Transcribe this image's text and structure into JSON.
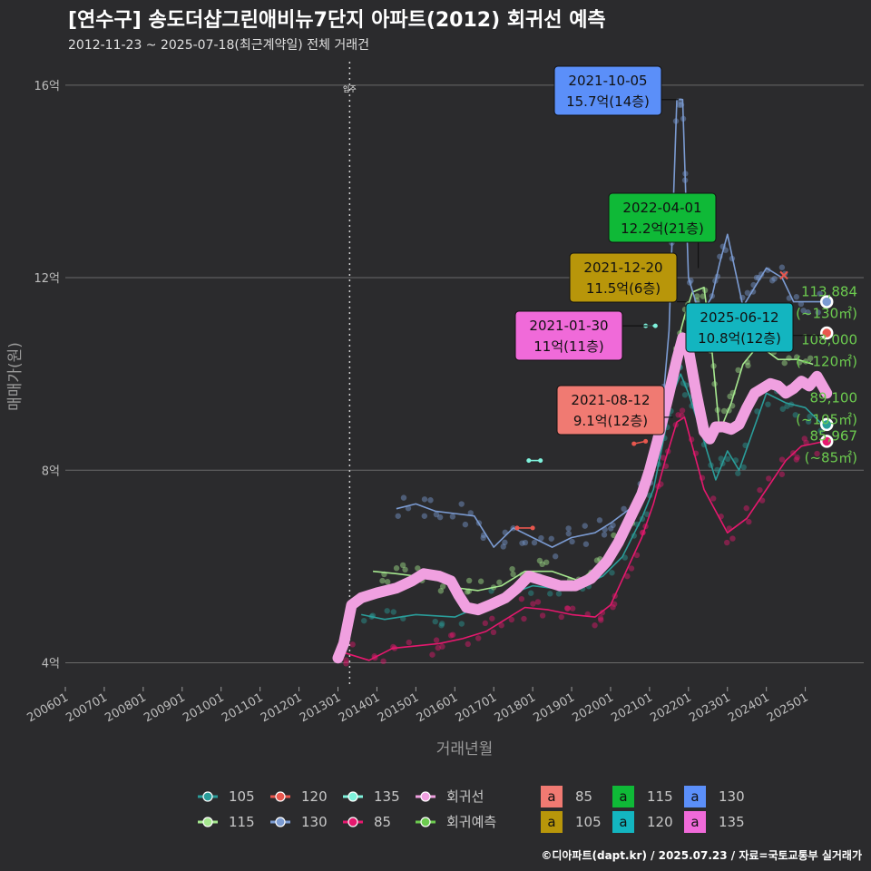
{
  "title": "[연수구] 송도더샵그린애비뉴7단지 아파트(2012) 회귀선 예측",
  "subtitle": "2012-11-23 ~ 2025-07-18(최근계약일) 전체 거래건",
  "caption": "©디아파트(dapt.kr) / 2025.07.23 / 자료=국토교통부 실거래가",
  "chart_data": {
    "type": "line",
    "xlabel": "거래년월",
    "ylabel": "매매가(원)",
    "xlim": [
      2006.0,
      2026.5
    ],
    "ylim": [
      3.5,
      16.6
    ],
    "x_ticks": [
      "200601",
      "200701",
      "200801",
      "200901",
      "201001",
      "201101",
      "201201",
      "201301",
      "201401",
      "201501",
      "201601",
      "201701",
      "201801",
      "201901",
      "202001",
      "202101",
      "202201",
      "202301",
      "202401",
      "202501"
    ],
    "y_ticks": [
      {
        "value": 4,
        "label": "4억"
      },
      {
        "value": 8,
        "label": "8억"
      },
      {
        "value": 12,
        "label": "12억"
      },
      {
        "value": 16,
        "label": "16억"
      }
    ],
    "move_in": {
      "x": 2013.3,
      "label": "입주"
    },
    "regression": {
      "name": "회귀선",
      "color": "#f0a0e0",
      "points": [
        [
          2013.0,
          4.1
        ],
        [
          2013.15,
          4.4
        ],
        [
          2013.35,
          5.2
        ],
        [
          2013.6,
          5.35
        ],
        [
          2014.0,
          5.45
        ],
        [
          2014.5,
          5.55
        ],
        [
          2014.9,
          5.7
        ],
        [
          2015.2,
          5.85
        ],
        [
          2015.6,
          5.8
        ],
        [
          2015.9,
          5.7
        ],
        [
          2016.1,
          5.4
        ],
        [
          2016.3,
          5.15
        ],
        [
          2016.6,
          5.1
        ],
        [
          2016.9,
          5.2
        ],
        [
          2017.3,
          5.35
        ],
        [
          2017.6,
          5.55
        ],
        [
          2017.9,
          5.8
        ],
        [
          2018.3,
          5.7
        ],
        [
          2018.7,
          5.6
        ],
        [
          2019.1,
          5.6
        ],
        [
          2019.5,
          5.75
        ],
        [
          2019.9,
          6.1
        ],
        [
          2020.2,
          6.5
        ],
        [
          2020.5,
          7.0
        ],
        [
          2020.8,
          7.5
        ],
        [
          2021.0,
          8.0
        ],
        [
          2021.2,
          8.6
        ],
        [
          2021.5,
          9.6
        ],
        [
          2021.7,
          10.3
        ],
        [
          2021.85,
          10.75
        ],
        [
          2022.0,
          10.5
        ],
        [
          2022.2,
          9.6
        ],
        [
          2022.4,
          8.8
        ],
        [
          2022.55,
          8.65
        ],
        [
          2022.7,
          8.9
        ],
        [
          2022.9,
          8.9
        ],
        [
          2023.1,
          8.85
        ],
        [
          2023.3,
          8.95
        ],
        [
          2023.5,
          9.3
        ],
        [
          2023.7,
          9.6
        ],
        [
          2023.9,
          9.7
        ],
        [
          2024.1,
          9.8
        ],
        [
          2024.3,
          9.75
        ],
        [
          2024.5,
          9.6
        ],
        [
          2024.7,
          9.7
        ],
        [
          2024.9,
          9.85
        ],
        [
          2025.1,
          9.75
        ],
        [
          2025.3,
          9.95
        ],
        [
          2025.55,
          9.6
        ]
      ]
    },
    "series": [
      {
        "name": "105",
        "color": "#2a9d9a",
        "points": [
          [
            2013.6,
            5.0
          ],
          [
            2014.2,
            4.9
          ],
          [
            2015.0,
            5.0
          ],
          [
            2016.0,
            4.95
          ],
          [
            2017.0,
            5.3
          ],
          [
            2018.0,
            5.6
          ],
          [
            2019.0,
            5.5
          ],
          [
            2019.8,
            5.8
          ],
          [
            2020.3,
            6.2
          ],
          [
            2020.8,
            7.0
          ],
          [
            2021.1,
            7.6
          ],
          [
            2021.4,
            8.8
          ],
          [
            2021.6,
            9.6
          ],
          [
            2021.8,
            10.0
          ],
          [
            2022.0,
            9.6
          ],
          [
            2022.4,
            8.6
          ],
          [
            2022.7,
            7.8
          ],
          [
            2023.0,
            8.4
          ],
          [
            2023.3,
            8.0
          ],
          [
            2024.0,
            9.6
          ],
          [
            2024.5,
            9.4
          ],
          [
            2025.0,
            9.3
          ],
          [
            2025.5,
            8.9
          ]
        ]
      },
      {
        "name": "115",
        "color": "#a6e88f",
        "points": [
          [
            2013.9,
            5.9
          ],
          [
            2014.5,
            5.85
          ],
          [
            2015.0,
            5.8
          ],
          [
            2015.6,
            5.7
          ],
          [
            2016.1,
            5.55
          ],
          [
            2016.6,
            5.5
          ],
          [
            2017.2,
            5.6
          ],
          [
            2017.8,
            5.9
          ],
          [
            2018.5,
            5.9
          ],
          [
            2019.2,
            5.7
          ],
          [
            2019.8,
            6.1
          ],
          [
            2020.4,
            6.8
          ],
          [
            2020.9,
            7.8
          ],
          [
            2021.2,
            8.8
          ],
          [
            2021.5,
            9.6
          ],
          [
            2021.7,
            10.6
          ],
          [
            2021.9,
            11.2
          ],
          [
            2022.1,
            11.7
          ],
          [
            2022.4,
            11.8
          ],
          [
            2022.6,
            10.5
          ],
          [
            2022.8,
            8.8
          ],
          [
            2023.1,
            9.4
          ],
          [
            2023.4,
            10.2
          ],
          [
            2023.8,
            10.6
          ],
          [
            2024.3,
            10.3
          ],
          [
            2024.8,
            10.3
          ],
          [
            2025.2,
            10.2
          ]
        ]
      },
      {
        "name": "130",
        "color": "#7b9bd2",
        "points": [
          [
            2014.5,
            7.2
          ],
          [
            2015.0,
            7.3
          ],
          [
            2015.5,
            7.15
          ],
          [
            2016.0,
            7.1
          ],
          [
            2016.5,
            7.05
          ],
          [
            2017.0,
            6.4
          ],
          [
            2017.5,
            6.8
          ],
          [
            2018.0,
            6.6
          ],
          [
            2018.5,
            6.4
          ],
          [
            2019.0,
            6.6
          ],
          [
            2019.6,
            6.7
          ],
          [
            2020.0,
            6.9
          ],
          [
            2020.5,
            7.2
          ],
          [
            2021.0,
            7.8
          ],
          [
            2021.3,
            9.0
          ],
          [
            2021.5,
            10.9
          ],
          [
            2021.7,
            15.7
          ],
          [
            2021.85,
            15.7
          ],
          [
            2022.0,
            12.0
          ],
          [
            2022.3,
            11.2
          ],
          [
            2022.6,
            11.6
          ],
          [
            2022.8,
            12.3
          ],
          [
            2023.0,
            12.9
          ],
          [
            2023.4,
            11.4
          ],
          [
            2023.7,
            11.8
          ],
          [
            2024.0,
            12.2
          ],
          [
            2024.4,
            12.0
          ],
          [
            2024.7,
            11.5
          ],
          [
            2025.0,
            11.5
          ],
          [
            2025.5,
            11.5
          ]
        ]
      },
      {
        "name": "85",
        "color": "#e6186e",
        "points": [
          [
            2013.2,
            4.2
          ],
          [
            2013.8,
            4.05
          ],
          [
            2014.4,
            4.3
          ],
          [
            2015.0,
            4.35
          ],
          [
            2015.6,
            4.4
          ],
          [
            2016.2,
            4.5
          ],
          [
            2016.8,
            4.65
          ],
          [
            2017.3,
            4.9
          ],
          [
            2017.8,
            5.15
          ],
          [
            2018.4,
            5.1
          ],
          [
            2019.0,
            5.0
          ],
          [
            2019.6,
            4.95
          ],
          [
            2020.0,
            5.2
          ],
          [
            2020.4,
            5.9
          ],
          [
            2020.8,
            6.6
          ],
          [
            2021.1,
            7.3
          ],
          [
            2021.4,
            8.2
          ],
          [
            2021.7,
            9.0
          ],
          [
            2021.9,
            9.1
          ],
          [
            2022.4,
            7.6
          ],
          [
            2023.0,
            6.7
          ],
          [
            2023.5,
            7.0
          ],
          [
            2024.0,
            7.6
          ],
          [
            2024.5,
            8.2
          ],
          [
            2024.9,
            8.5
          ],
          [
            2025.5,
            8.6
          ]
        ]
      }
    ],
    "short_segments": [
      {
        "name": "120",
        "color": "#e8574e",
        "points": [
          [
            2017.6,
            6.8
          ],
          [
            2018.0,
            6.8
          ]
        ]
      },
      {
        "name": "135",
        "color": "#7ff2dc",
        "points": [
          [
            2017.9,
            8.2
          ],
          [
            2018.2,
            8.2
          ]
        ]
      },
      {
        "name": "120b",
        "color": "#e8574e",
        "points": [
          [
            2020.6,
            8.55
          ],
          [
            2020.9,
            8.6
          ]
        ]
      },
      {
        "name": "135b",
        "color": "#7ff2dc",
        "points": [
          [
            2020.9,
            11.0
          ],
          [
            2021.15,
            11.0
          ]
        ]
      }
    ],
    "callouts": [
      {
        "date": "2021-10-05",
        "value": "15.7억(14층)",
        "bg": "#5b8ff9",
        "anchor": [
          2021.75,
          15.7
        ],
        "box": [
          611,
          73
        ]
      },
      {
        "date": "2022-04-01",
        "value": "12.2억(21층)",
        "bg": "#0fb937",
        "anchor": [
          2022.25,
          12.2
        ],
        "box": [
          671,
          213
        ]
      },
      {
        "date": "2021-12-20",
        "value": "11.5억(6층)",
        "bg": "#b8960a",
        "anchor": [
          2021.95,
          11.5
        ],
        "box": [
          628,
          279
        ]
      },
      {
        "date": "2021-01-30",
        "value": "11억(11층)",
        "bg": "#f06ad9",
        "anchor": [
          2021.08,
          11.0
        ],
        "box": [
          568,
          343
        ]
      },
      {
        "date": "2025-06-12",
        "value": "10.8억(12층)",
        "bg": "#13b5c0",
        "anchor": [
          2025.45,
          10.8
        ],
        "box": [
          756,
          334
        ]
      },
      {
        "date": "2021-08-12",
        "value": "9.1억(12층)",
        "bg": "#f07a72",
        "anchor": [
          2021.6,
          9.1
        ],
        "box": [
          614,
          425
        ]
      }
    ],
    "forecast_labels": [
      {
        "price": "113,884",
        "area": "(~130㎡)",
        "y": 11.5
      },
      {
        "price": "108,000",
        "area": "(~120㎡)",
        "y": 10.5
      },
      {
        "price": "89,100",
        "area": "(~105㎡)",
        "y": 9.3
      },
      {
        "price": "85,967",
        "area": "(~85㎡)",
        "y": 8.5
      }
    ],
    "forecast_points": [
      {
        "name": "130",
        "x": 2025.55,
        "y": 11.5,
        "color": "#7b9bd2"
      },
      {
        "name": "120",
        "x": 2025.55,
        "y": 10.85,
        "color": "#e8574e"
      },
      {
        "name": "105",
        "x": 2025.55,
        "y": 8.95,
        "color": "#2a9d9a"
      },
      {
        "name": "85",
        "x": 2025.55,
        "y": 8.6,
        "color": "#e6186e"
      }
    ],
    "legend": {
      "lines": [
        {
          "label": "105",
          "color": "#2a9d9a"
        },
        {
          "label": "120",
          "color": "#e8574e"
        },
        {
          "label": "135",
          "color": "#7ff2dc"
        },
        {
          "label": "회귀선",
          "color": "#f0a0e0"
        },
        {
          "label": "115",
          "color": "#a6e88f"
        },
        {
          "label": "130",
          "color": "#7b9bd2"
        },
        {
          "label": "85",
          "color": "#e6186e"
        },
        {
          "label": "회귀예측",
          "color": "#6ccb4f"
        }
      ],
      "boxes": [
        {
          "label": "85",
          "color": "#f07a72"
        },
        {
          "label": "115",
          "color": "#0fb937"
        },
        {
          "label": "130",
          "color": "#5b8ff9"
        },
        {
          "label": "105",
          "color": "#b8960a"
        },
        {
          "label": "120",
          "color": "#13b5c0"
        },
        {
          "label": "135",
          "color": "#f06ad9"
        }
      ],
      "box_glyph": "a"
    }
  }
}
